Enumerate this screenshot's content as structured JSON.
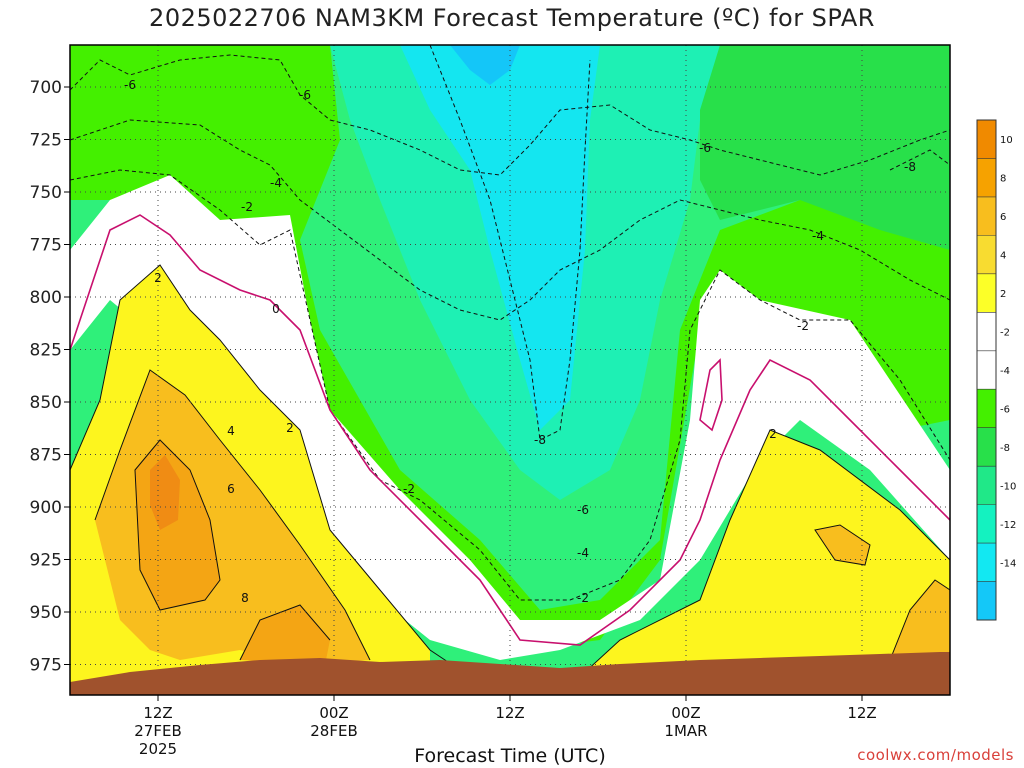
{
  "header": {
    "title": "2025022706 NAM3KM Forecast Temperature (ºC) for SPAR"
  },
  "footer": {
    "xlabel": "Forecast Time (UTC)",
    "credit": "coolwx.com/models"
  },
  "chart_data": {
    "type": "heatmap",
    "title": "2025022706 NAM3KM Forecast Temperature (ºC) for SPAR",
    "xlabel": "Forecast Time (UTC)",
    "ylabel": "",
    "y_axis": {
      "ticks": [
        700,
        725,
        750,
        775,
        800,
        825,
        850,
        875,
        900,
        925,
        950,
        975
      ],
      "inverted": true
    },
    "x_axis": {
      "ticks": [
        {
          "line1": "12Z",
          "line2": "27FEB",
          "line3": "2025"
        },
        {
          "line1": "00Z",
          "line2": "28FEB",
          "line3": ""
        },
        {
          "line1": "12Z",
          "line2": "",
          "line3": ""
        },
        {
          "line1": "00Z",
          "line2": "1MAR",
          "line3": ""
        },
        {
          "line1": "12Z",
          "line2": "",
          "line3": ""
        }
      ]
    },
    "grid": true,
    "colorbar": {
      "placement": "right",
      "labels": [
        "10",
        "8",
        "6",
        "4",
        "2",
        "-2",
        "-4",
        "-6",
        "-8",
        "-10",
        "-12",
        "-14"
      ],
      "colors": [
        "#f08a00",
        "#f6a200",
        "#f8be1e",
        "#f8dc30",
        "#fcff28",
        "#ffffff",
        "#ffffff",
        "#44f000",
        "#28e04a",
        "#20e888",
        "#14f2c0",
        "#12e8f2",
        "#14c8f8"
      ]
    },
    "contour_labels": [
      "-6",
      "-6",
      "-4",
      "-2",
      "2",
      "0",
      "4",
      "2",
      "6",
      "8",
      "-6",
      "-8",
      "-4",
      "-2",
      "-2",
      "-8",
      "-6",
      "-4",
      "-2",
      "2"
    ],
    "colors": {
      "ground": "#a0522d",
      "freezing_line": "#c8106e",
      "warm_orange": "#f4a514",
      "warm_deep": "#f08c14",
      "yellow": "#fdf51e",
      "green": "#44f000",
      "green_mid": "#32e464",
      "teal": "#1ef0b4",
      "cyan": "#14e6f0",
      "blue": "#14c6f8"
    }
  }
}
